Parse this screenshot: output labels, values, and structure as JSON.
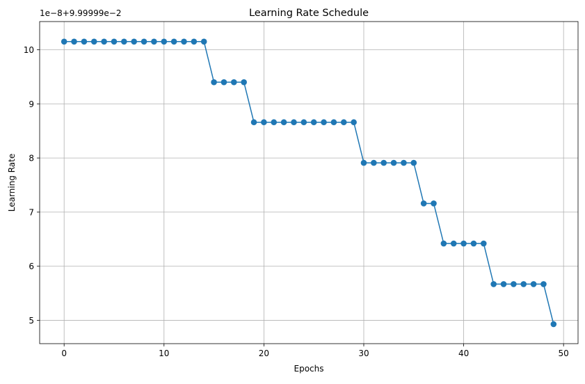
{
  "chart_data": {
    "type": "line",
    "title": "Learning Rate Schedule",
    "xlabel": "Epochs",
    "ylabel": "Learning Rate",
    "y_offset_label": "1e−8+9.99999e−2",
    "xlim": [
      -2.45,
      51.45
    ],
    "ylim": [
      4.57,
      10.52
    ],
    "x_ticks": [
      0,
      10,
      20,
      30,
      40,
      50
    ],
    "y_ticks": [
      5,
      6,
      7,
      8,
      9,
      10
    ],
    "grid": true,
    "legend": "none",
    "colors": {
      "series": "#1f77b4",
      "grid": "#b0b0b0"
    },
    "x": [
      0,
      1,
      2,
      3,
      4,
      5,
      6,
      7,
      8,
      9,
      10,
      11,
      12,
      13,
      14,
      15,
      16,
      17,
      18,
      19,
      20,
      21,
      22,
      23,
      24,
      25,
      26,
      27,
      28,
      29,
      30,
      31,
      32,
      33,
      34,
      35,
      36,
      37,
      38,
      39,
      40,
      41,
      42,
      43,
      44,
      45,
      46,
      47,
      48,
      49
    ],
    "values": [
      10.15,
      10.15,
      10.15,
      10.15,
      10.15,
      10.15,
      10.15,
      10.15,
      10.15,
      10.15,
      10.15,
      10.15,
      10.15,
      10.15,
      10.15,
      9.4,
      9.4,
      9.4,
      9.4,
      8.66,
      8.66,
      8.66,
      8.66,
      8.66,
      8.66,
      8.66,
      8.66,
      8.66,
      8.66,
      8.66,
      7.91,
      7.91,
      7.91,
      7.91,
      7.91,
      7.91,
      7.16,
      7.16,
      6.42,
      6.42,
      6.42,
      6.42,
      6.42,
      5.67,
      5.67,
      5.67,
      5.67,
      5.67,
      5.67,
      4.93
    ]
  }
}
